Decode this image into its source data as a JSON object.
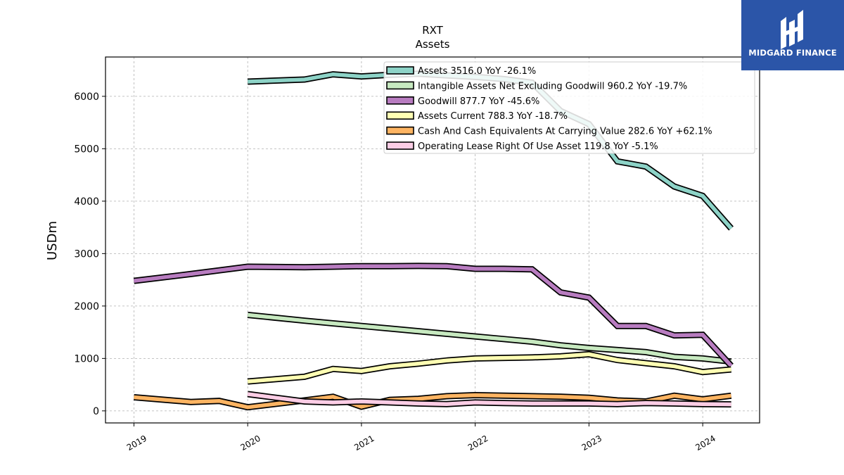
{
  "brand": {
    "name": "MIDGARD FINANCE",
    "bg_color": "#2b55a8"
  },
  "chart_data": {
    "type": "line",
    "title": "RXT",
    "subtitle": "Assets",
    "xlabel": "",
    "ylabel": "USDm",
    "xlim": [
      2018.75,
      2024.5
    ],
    "ylim": [
      -230,
      6750
    ],
    "yticks": [
      0,
      1000,
      2000,
      3000,
      4000,
      5000,
      6000
    ],
    "xticks": [
      {
        "label": "2019",
        "value": 2019
      },
      {
        "label": "2020",
        "value": 2020
      },
      {
        "label": "2021",
        "value": 2021
      },
      {
        "label": "2022",
        "value": 2022
      },
      {
        "label": "2023",
        "value": 2023
      },
      {
        "label": "2024",
        "value": 2024
      }
    ],
    "grid": true,
    "legend_position": "top-right",
    "series": [
      {
        "name": "Assets  3516.0 YoY -26.1%",
        "color": "#8dd3c7",
        "x": [
          2020.0,
          2020.5,
          2020.75,
          2021.0,
          2021.25,
          2021.5,
          2021.75,
          2022.0,
          2022.25,
          2022.5,
          2022.75,
          2023.0,
          2023.25,
          2023.5,
          2023.75,
          2024.0,
          2024.25
        ],
        "y": [
          6280,
          6320,
          6420,
          6380,
          6410,
          6430,
          6400,
          6370,
          6330,
          6260,
          5720,
          5470,
          4760,
          4660,
          4280,
          4100,
          3480
        ]
      },
      {
        "name": "Intangible Assets Net Excluding Goodwill  960.2 YoY -19.7%",
        "color": "#c7e9c0",
        "x": [
          2020.0,
          2020.5,
          2020.75,
          2021.0,
          2021.25,
          2021.5,
          2021.75,
          2022.0,
          2022.25,
          2022.5,
          2022.75,
          2023.0,
          2023.25,
          2023.5,
          2023.75,
          2024.0,
          2024.25
        ],
        "y": [
          1830,
          1720,
          1670,
          1620,
          1570,
          1520,
          1470,
          1420,
          1370,
          1320,
          1250,
          1200,
          1160,
          1120,
          1030,
          1000,
          940
        ]
      },
      {
        "name": "Goodwill  877.7 YoY -45.6%",
        "color": "#b87cc0",
        "x": [
          2019.0,
          2019.5,
          2019.75,
          2020.0,
          2020.5,
          2020.75,
          2021.0,
          2021.25,
          2021.5,
          2021.75,
          2022.0,
          2022.25,
          2022.5,
          2022.75,
          2023.0,
          2023.25,
          2023.5,
          2023.75,
          2024.0,
          2024.25
        ],
        "y": [
          2480,
          2610,
          2680,
          2750,
          2740,
          2750,
          2760,
          2760,
          2765,
          2760,
          2710,
          2710,
          2700,
          2260,
          2160,
          1620,
          1620,
          1440,
          1450,
          860
        ]
      },
      {
        "name": "Assets Current  788.3 YoY -18.7%",
        "color": "#ffffb3",
        "x": [
          2020.0,
          2020.5,
          2020.75,
          2021.0,
          2021.25,
          2021.5,
          2021.75,
          2022.0,
          2022.25,
          2022.5,
          2022.75,
          2023.0,
          2023.25,
          2023.5,
          2023.75,
          2024.0,
          2024.25
        ],
        "y": [
          560,
          650,
          800,
          760,
          850,
          900,
          960,
          1000,
          1010,
          1020,
          1040,
          1080,
          970,
          910,
          850,
          740,
          790
        ]
      },
      {
        "name": "Cash And Cash Equivalents At Carrying Value  282.6 YoY +62.1%",
        "color": "#fdb462",
        "x": [
          2019.0,
          2019.5,
          2019.75,
          2020.0,
          2020.5,
          2020.75,
          2021.0,
          2021.25,
          2021.5,
          2021.75,
          2022.0,
          2022.25,
          2022.5,
          2022.75,
          2023.0,
          2023.25,
          2023.5,
          2023.75,
          2024.0,
          2024.25
        ],
        "y": [
          260,
          170,
          190,
          70,
          200,
          270,
          80,
          210,
          230,
          280,
          300,
          290,
          280,
          270,
          250,
          200,
          180,
          290,
          220,
          290
        ]
      },
      {
        "name": "Operating Lease Right Of Use Asset  119.8 YoY -5.1%",
        "color": "#fccde5",
        "x": [
          2020.0,
          2020.5,
          2020.75,
          2021.0,
          2021.25,
          2021.5,
          2021.75,
          2022.0,
          2022.25,
          2022.5,
          2022.75,
          2023.0,
          2023.25,
          2023.5,
          2023.75,
          2024.0,
          2024.25
        ],
        "y": [
          320,
          180,
          160,
          180,
          160,
          140,
          130,
          160,
          150,
          140,
          140,
          140,
          130,
          150,
          140,
          130,
          125
        ]
      }
    ]
  }
}
